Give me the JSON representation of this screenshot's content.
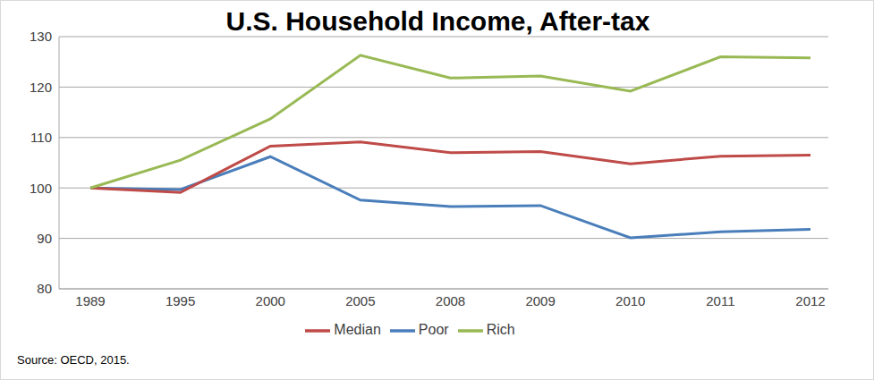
{
  "chart_data": {
    "type": "line",
    "title": "U.S. Household Income, After-tax",
    "annotations": [
      "Source: OECD, 2015."
    ],
    "categories": [
      "1989",
      "1995",
      "2000",
      "2005",
      "2008",
      "2009",
      "2010",
      "2011",
      "2012"
    ],
    "series": [
      {
        "name": "Poor",
        "color": "#4a7ebb",
        "values": [
          100,
          99.7,
          106.2,
          97.6,
          96.3,
          96.5,
          90.1,
          91.3,
          91.8
        ]
      },
      {
        "name": "Median",
        "color": "#be4b48",
        "values": [
          100,
          99.1,
          108.3,
          109.1,
          107,
          107.2,
          104.8,
          106.3,
          106.5
        ]
      },
      {
        "name": "Rich",
        "color": "#98b954",
        "values": [
          100,
          105.5,
          113.7,
          126.3,
          121.8,
          122.2,
          119.2,
          126,
          125.8
        ]
      }
    ],
    "ylim": [
      80,
      130
    ],
    "yticks": [
      80,
      90,
      100,
      110,
      120,
      130
    ],
    "grid": true,
    "legend": "bottom"
  }
}
